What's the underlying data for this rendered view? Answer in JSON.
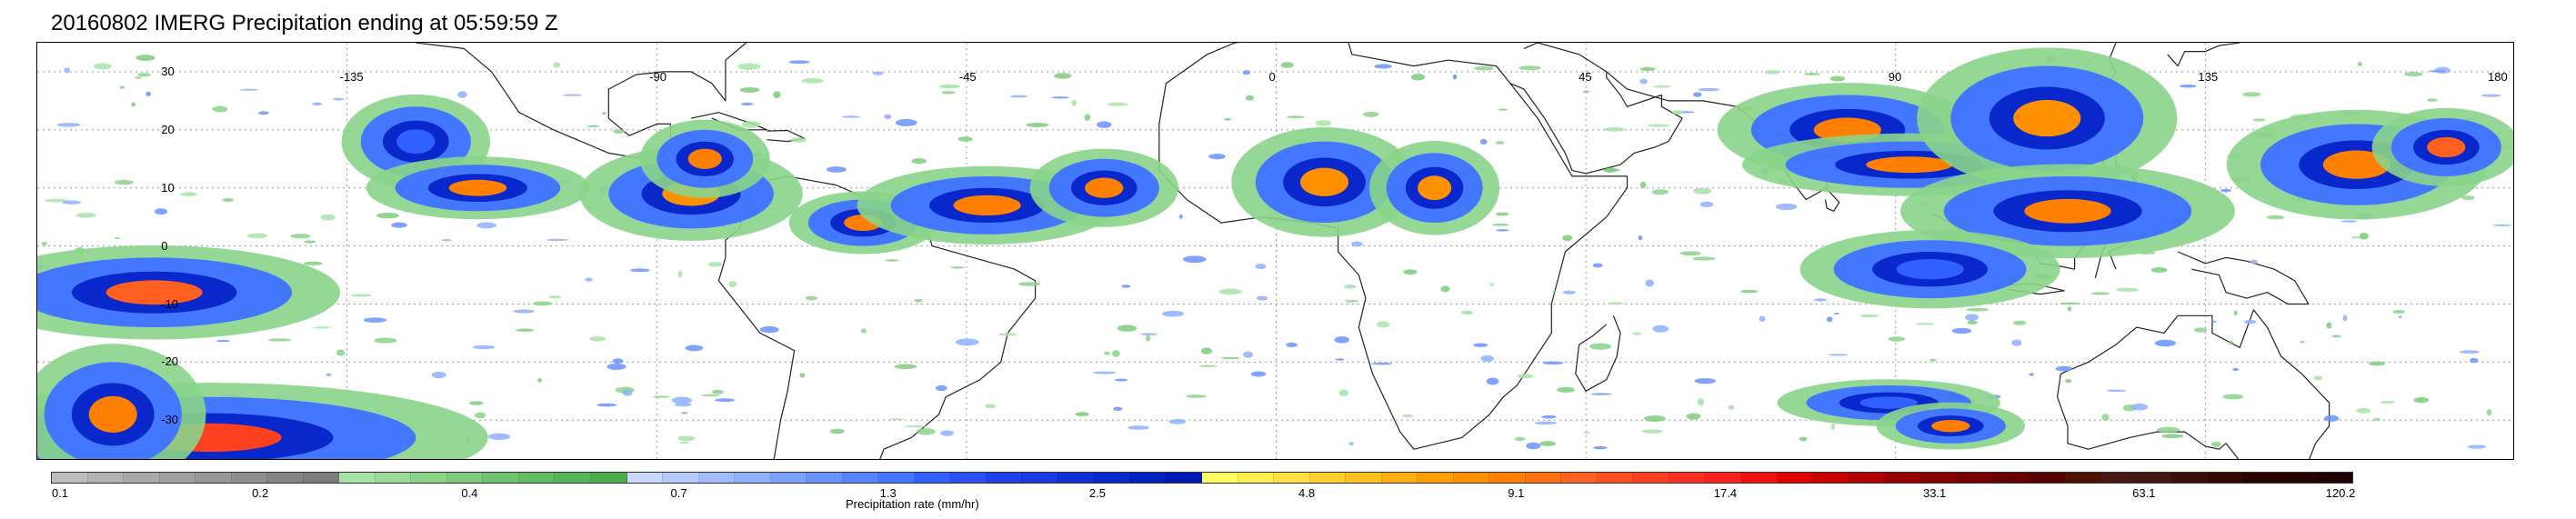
{
  "title": "20160802 IMERG Precipitation ending at 05:59:59 Z",
  "map": {
    "longitude_labels": [
      "-135",
      "-90",
      "-45",
      "0",
      "45",
      "90",
      "135",
      "180"
    ],
    "longitude_values": [
      -135,
      -90,
      -45,
      0,
      45,
      90,
      135,
      180
    ],
    "latitude_labels": [
      "30",
      "20",
      "10",
      "0",
      "-10",
      "-20",
      "-30"
    ],
    "latitude_values": [
      30,
      20,
      10,
      0,
      -10,
      -20,
      -30
    ],
    "lon_range": [
      -180,
      180
    ],
    "lat_range": [
      -37,
      35
    ],
    "grid": "dotted"
  },
  "colorbar": {
    "label": "Precipitation rate (mm/hr)",
    "tick_labels": [
      "0.1",
      "0.2",
      "0.4",
      "0.7",
      "1.3",
      "2.5",
      "4.8",
      "9.1",
      "17.4",
      "33.1",
      "63.1",
      "120.2"
    ],
    "colors": [
      "#bdbdbd",
      "#b3b3b3",
      "#a9a9a9",
      "#a0a0a0",
      "#979797",
      "#8e8e8e",
      "#858585",
      "#7d7d7d",
      "#a6e3a6",
      "#98dc98",
      "#8ad48a",
      "#7ccc7c",
      "#6fc56f",
      "#62bd62",
      "#56b556",
      "#4bad4b",
      "#c9d9ff",
      "#b5cbff",
      "#a2bdff",
      "#8fafff",
      "#7ca1ff",
      "#6993ff",
      "#5685ff",
      "#4377ff",
      "#3060ff",
      "#2850f5",
      "#2040eb",
      "#1838e0",
      "#1030d6",
      "#0828cc",
      "#0020c2",
      "#0018b8",
      "#ffff60",
      "#fff050",
      "#ffe040",
      "#ffd030",
      "#ffc020",
      "#ffb010",
      "#ffa000",
      "#ff9000",
      "#ff8000",
      "#ff7010",
      "#ff6020",
      "#ff5020",
      "#ff4020",
      "#ff3020",
      "#ff2020",
      "#f01010",
      "#e00000",
      "#c80000",
      "#b00000",
      "#980000",
      "#880000",
      "#780000",
      "#680000",
      "#580000",
      "#501000",
      "#481810",
      "#401810",
      "#381008",
      "#300800",
      "#2a0500",
      "#250300",
      "#200000"
    ]
  },
  "storms": [
    {
      "lon": -163,
      "lat": -8,
      "rx": 20,
      "ry": 6,
      "core": "#ff6020"
    },
    {
      "lon": -155,
      "lat": -33,
      "rx": 30,
      "ry": 7,
      "core": "#ff4020"
    },
    {
      "lon": -169,
      "lat": -29,
      "rx": 10,
      "ry": 9,
      "core": "#ff8000"
    },
    {
      "lon": -125,
      "lat": 18,
      "rx": 8,
      "ry": 6,
      "core": "#3060ff"
    },
    {
      "lon": -116,
      "lat": 10,
      "rx": 12,
      "ry": 4,
      "core": "#ff8000"
    },
    {
      "lon": -85,
      "lat": 9,
      "rx": 12,
      "ry": 6,
      "core": "#ff9000"
    },
    {
      "lon": -83,
      "lat": 15,
      "rx": 7,
      "ry": 5,
      "core": "#ff8000"
    },
    {
      "lon": -60,
      "lat": 4,
      "rx": 8,
      "ry": 4,
      "core": "#ff8000"
    },
    {
      "lon": -42,
      "lat": 7,
      "rx": 14,
      "ry": 5,
      "core": "#ff8000"
    },
    {
      "lon": -25,
      "lat": 10,
      "rx": 8,
      "ry": 5,
      "core": "#ff8000"
    },
    {
      "lon": 7,
      "lat": 11,
      "rx": 10,
      "ry": 7,
      "core": "#ff9000"
    },
    {
      "lon": 23,
      "lat": 10,
      "rx": 7,
      "ry": 6,
      "core": "#ff9000"
    },
    {
      "lon": 83,
      "lat": 20,
      "rx": 14,
      "ry": 6,
      "core": "#ff8000"
    },
    {
      "lon": 92,
      "lat": 14,
      "rx": 18,
      "ry": 4,
      "core": "#ff8000"
    },
    {
      "lon": 112,
      "lat": 22,
      "rx": 14,
      "ry": 9,
      "core": "#ff9000"
    },
    {
      "lon": 115,
      "lat": 6,
      "rx": 18,
      "ry": 6,
      "core": "#ff8000"
    },
    {
      "lon": 95,
      "lat": -4,
      "rx": 14,
      "ry": 5,
      "core": "#3060ff"
    },
    {
      "lon": 157,
      "lat": 14,
      "rx": 14,
      "ry": 7,
      "core": "#ff8000"
    },
    {
      "lon": 170,
      "lat": 17,
      "rx": 8,
      "ry": 5,
      "core": "#ff6020"
    },
    {
      "lon": 89,
      "lat": -27,
      "rx": 12,
      "ry": 3,
      "core": "#3060ff"
    },
    {
      "lon": 98,
      "lat": -31,
      "rx": 8,
      "ry": 3,
      "core": "#ff8000"
    }
  ]
}
